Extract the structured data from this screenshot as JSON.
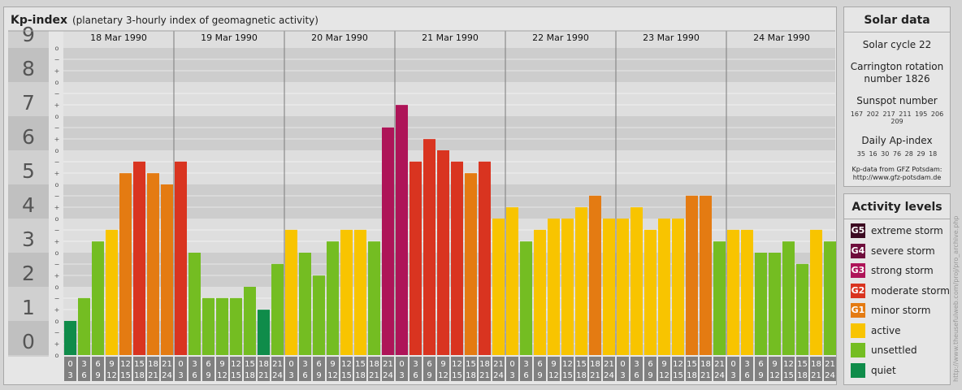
{
  "title": "Kp-index",
  "subtitle": "(planetary 3-hourly index of geomagnetic activity)",
  "chart_data": {
    "type": "bar",
    "ylim": [
      0,
      9
    ],
    "y_ticks": [
      "0",
      "1",
      "2",
      "3",
      "4",
      "5",
      "6",
      "7",
      "8",
      "9"
    ],
    "minor_marks": [
      "o",
      "+",
      "−"
    ],
    "days": [
      "18 Mar 1990",
      "19 Mar 1990",
      "20 Mar 1990",
      "21 Mar 1990",
      "22 Mar 1990",
      "23 Mar 1990",
      "24 Mar 1990"
    ],
    "hour_labels": [
      [
        "0",
        "3"
      ],
      [
        "3",
        "6"
      ],
      [
        "6",
        "9"
      ],
      [
        "9",
        "12"
      ],
      [
        "12",
        "15"
      ],
      [
        "15",
        "18"
      ],
      [
        "18",
        "21"
      ],
      [
        "21",
        "24"
      ]
    ],
    "values": [
      1.0,
      1.67,
      3.33,
      3.67,
      5.33,
      5.67,
      5.33,
      5.0,
      5.67,
      3.0,
      1.67,
      1.67,
      1.67,
      2.0,
      1.33,
      2.67,
      3.67,
      3.0,
      2.33,
      3.33,
      3.67,
      3.67,
      3.33,
      6.67,
      7.33,
      5.67,
      6.33,
      6.0,
      5.67,
      5.33,
      5.67,
      4.0,
      4.33,
      3.33,
      3.67,
      4.0,
      4.0,
      4.33,
      4.67,
      4.0,
      4.0,
      4.33,
      3.67,
      4.0,
      4.0,
      4.67,
      4.67,
      3.33,
      3.67,
      3.67,
      3.0,
      3.0,
      3.33,
      2.67,
      3.67,
      3.33
    ],
    "level_colors": {
      "quiet": "#0f8c4a",
      "unsettled": "#74bd22",
      "active": "#f8c400",
      "G1": "#e47b12",
      "G2": "#d93420",
      "G3": "#ae1458",
      "G4": "#6e0d3c",
      "G5": "#3c0a22"
    }
  },
  "solar": {
    "heading": "Solar data",
    "cycle": "Solar cycle 22",
    "carrington_1": "Carrington rotation",
    "carrington_2": "number 1826",
    "sunspot_label": "Sunspot number",
    "sunspot_values": "167 202 217 211 195 206 209",
    "ap_label": "Daily Ap-index",
    "ap_values": "35 16 30 76 28 29 18",
    "credit_1": "Kp-data from GFZ Potsdam:",
    "credit_2": "http://www.gfz-potsdam.de"
  },
  "activity": {
    "heading": "Activity levels",
    "items": [
      {
        "code": "G5",
        "label": "extreme storm",
        "color": "#3c0a22"
      },
      {
        "code": "G4",
        "label": "severe storm",
        "color": "#6e0d3c"
      },
      {
        "code": "G3",
        "label": "strong storm",
        "color": "#ae1458"
      },
      {
        "code": "G2",
        "label": "moderate storm",
        "color": "#d93420"
      },
      {
        "code": "G1",
        "label": "minor storm",
        "color": "#e47b12"
      },
      {
        "code": "",
        "label": "active",
        "color": "#f8c400"
      },
      {
        "code": "",
        "label": "unsettled",
        "color": "#74bd22"
      },
      {
        "code": "",
        "label": "quiet",
        "color": "#0f8c4a"
      }
    ]
  },
  "watermark": "http://www.theusefulweb.com/proj/pro_archive.php"
}
